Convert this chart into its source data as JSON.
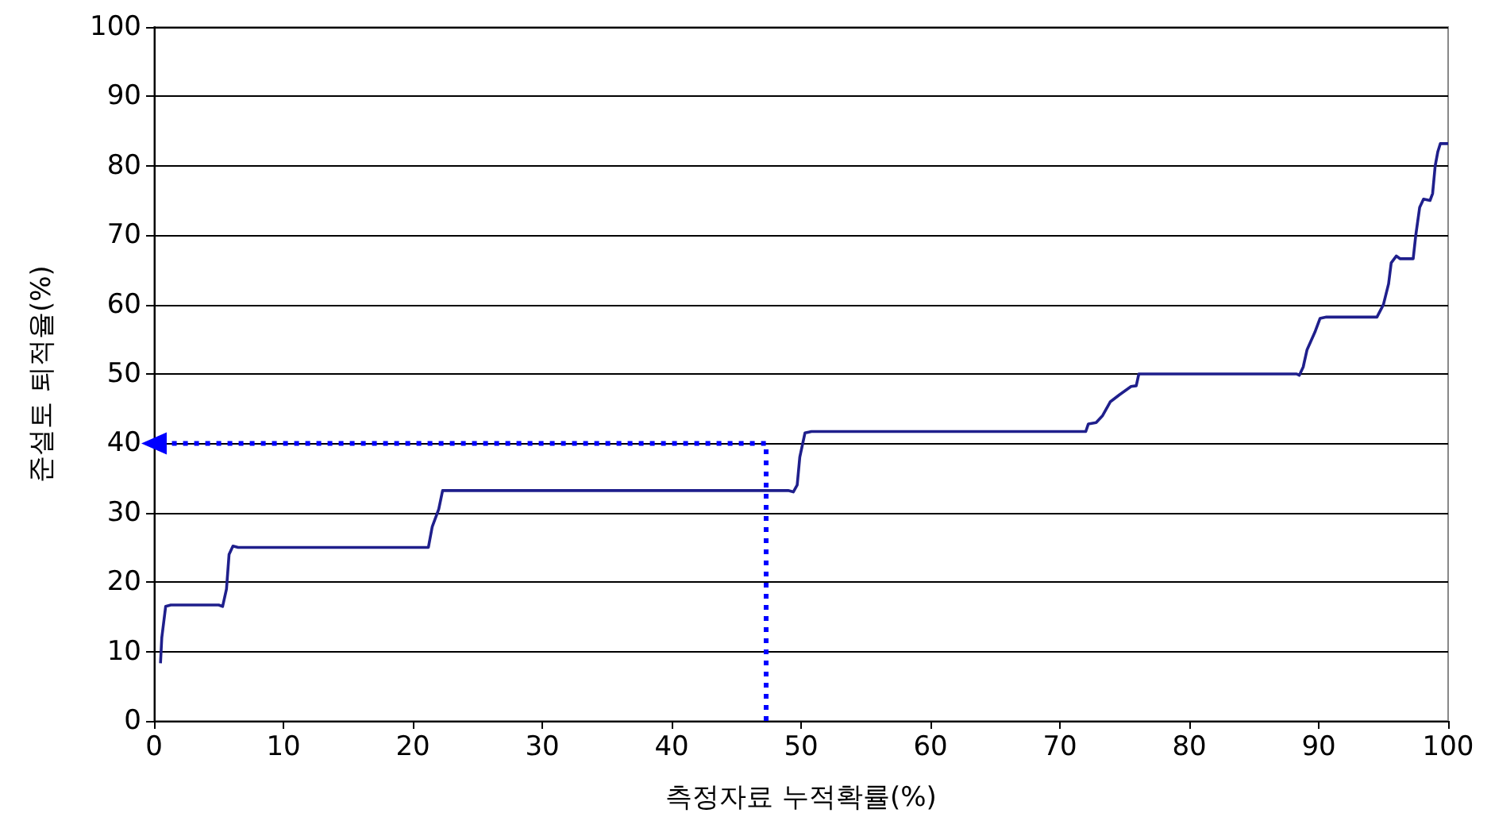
{
  "chart_data": {
    "type": "line",
    "xlabel": "측정자료 누적확률(%)",
    "ylabel": "준설토 퇴적율(%)",
    "xlim": [
      0,
      100
    ],
    "xticks": [
      0,
      10,
      20,
      30,
      40,
      50,
      60,
      70,
      80,
      90,
      100
    ],
    "ylim": [
      0,
      100
    ],
    "yticks": [
      0,
      10,
      20,
      30,
      40,
      50,
      60,
      70,
      80,
      90,
      100
    ],
    "grid": "y",
    "marker": "none",
    "series": [
      {
        "color": "#1f1f8c",
        "line_style": "solid",
        "x": [
          0.5,
          0.6,
          0.9,
          1.3,
          5,
          5.3,
          5.6,
          5.8,
          6.1,
          6.5,
          21.2,
          21.5,
          22,
          22.3,
          49,
          49.4,
          49.7,
          49.9,
          50.3,
          50.8,
          72,
          72.2,
          72.8,
          73.3,
          73.9,
          74.6,
          75.5,
          75.9,
          76.1,
          88.3,
          88.5,
          88.8,
          89.1,
          89.7,
          90.1,
          90.6,
          94.5,
          95,
          95.4,
          95.6,
          96,
          96.3,
          97.3,
          97.5,
          97.8,
          98.1,
          98.6,
          98.8,
          99,
          99.2,
          99.4,
          100
        ],
        "values": [
          8.3,
          12,
          16.5,
          16.7,
          16.7,
          16.5,
          19,
          24,
          25.2,
          25,
          25,
          28,
          30.5,
          33.2,
          33.2,
          33,
          34,
          38,
          41.5,
          41.7,
          41.7,
          42.8,
          43,
          44,
          46,
          47,
          48.2,
          48.3,
          50,
          50,
          49.8,
          51,
          53.5,
          56,
          58,
          58.2,
          58.2,
          60,
          63,
          66,
          67,
          66.6,
          66.6,
          70,
          74,
          75.2,
          75,
          76,
          80,
          82,
          83.2,
          83.2
        ]
      },
      {
        "color": "#0000ff",
        "line_style": "dotted",
        "x": [
          47.3,
          47.3,
          0
        ],
        "values": [
          0,
          40,
          40
        ]
      }
    ]
  }
}
